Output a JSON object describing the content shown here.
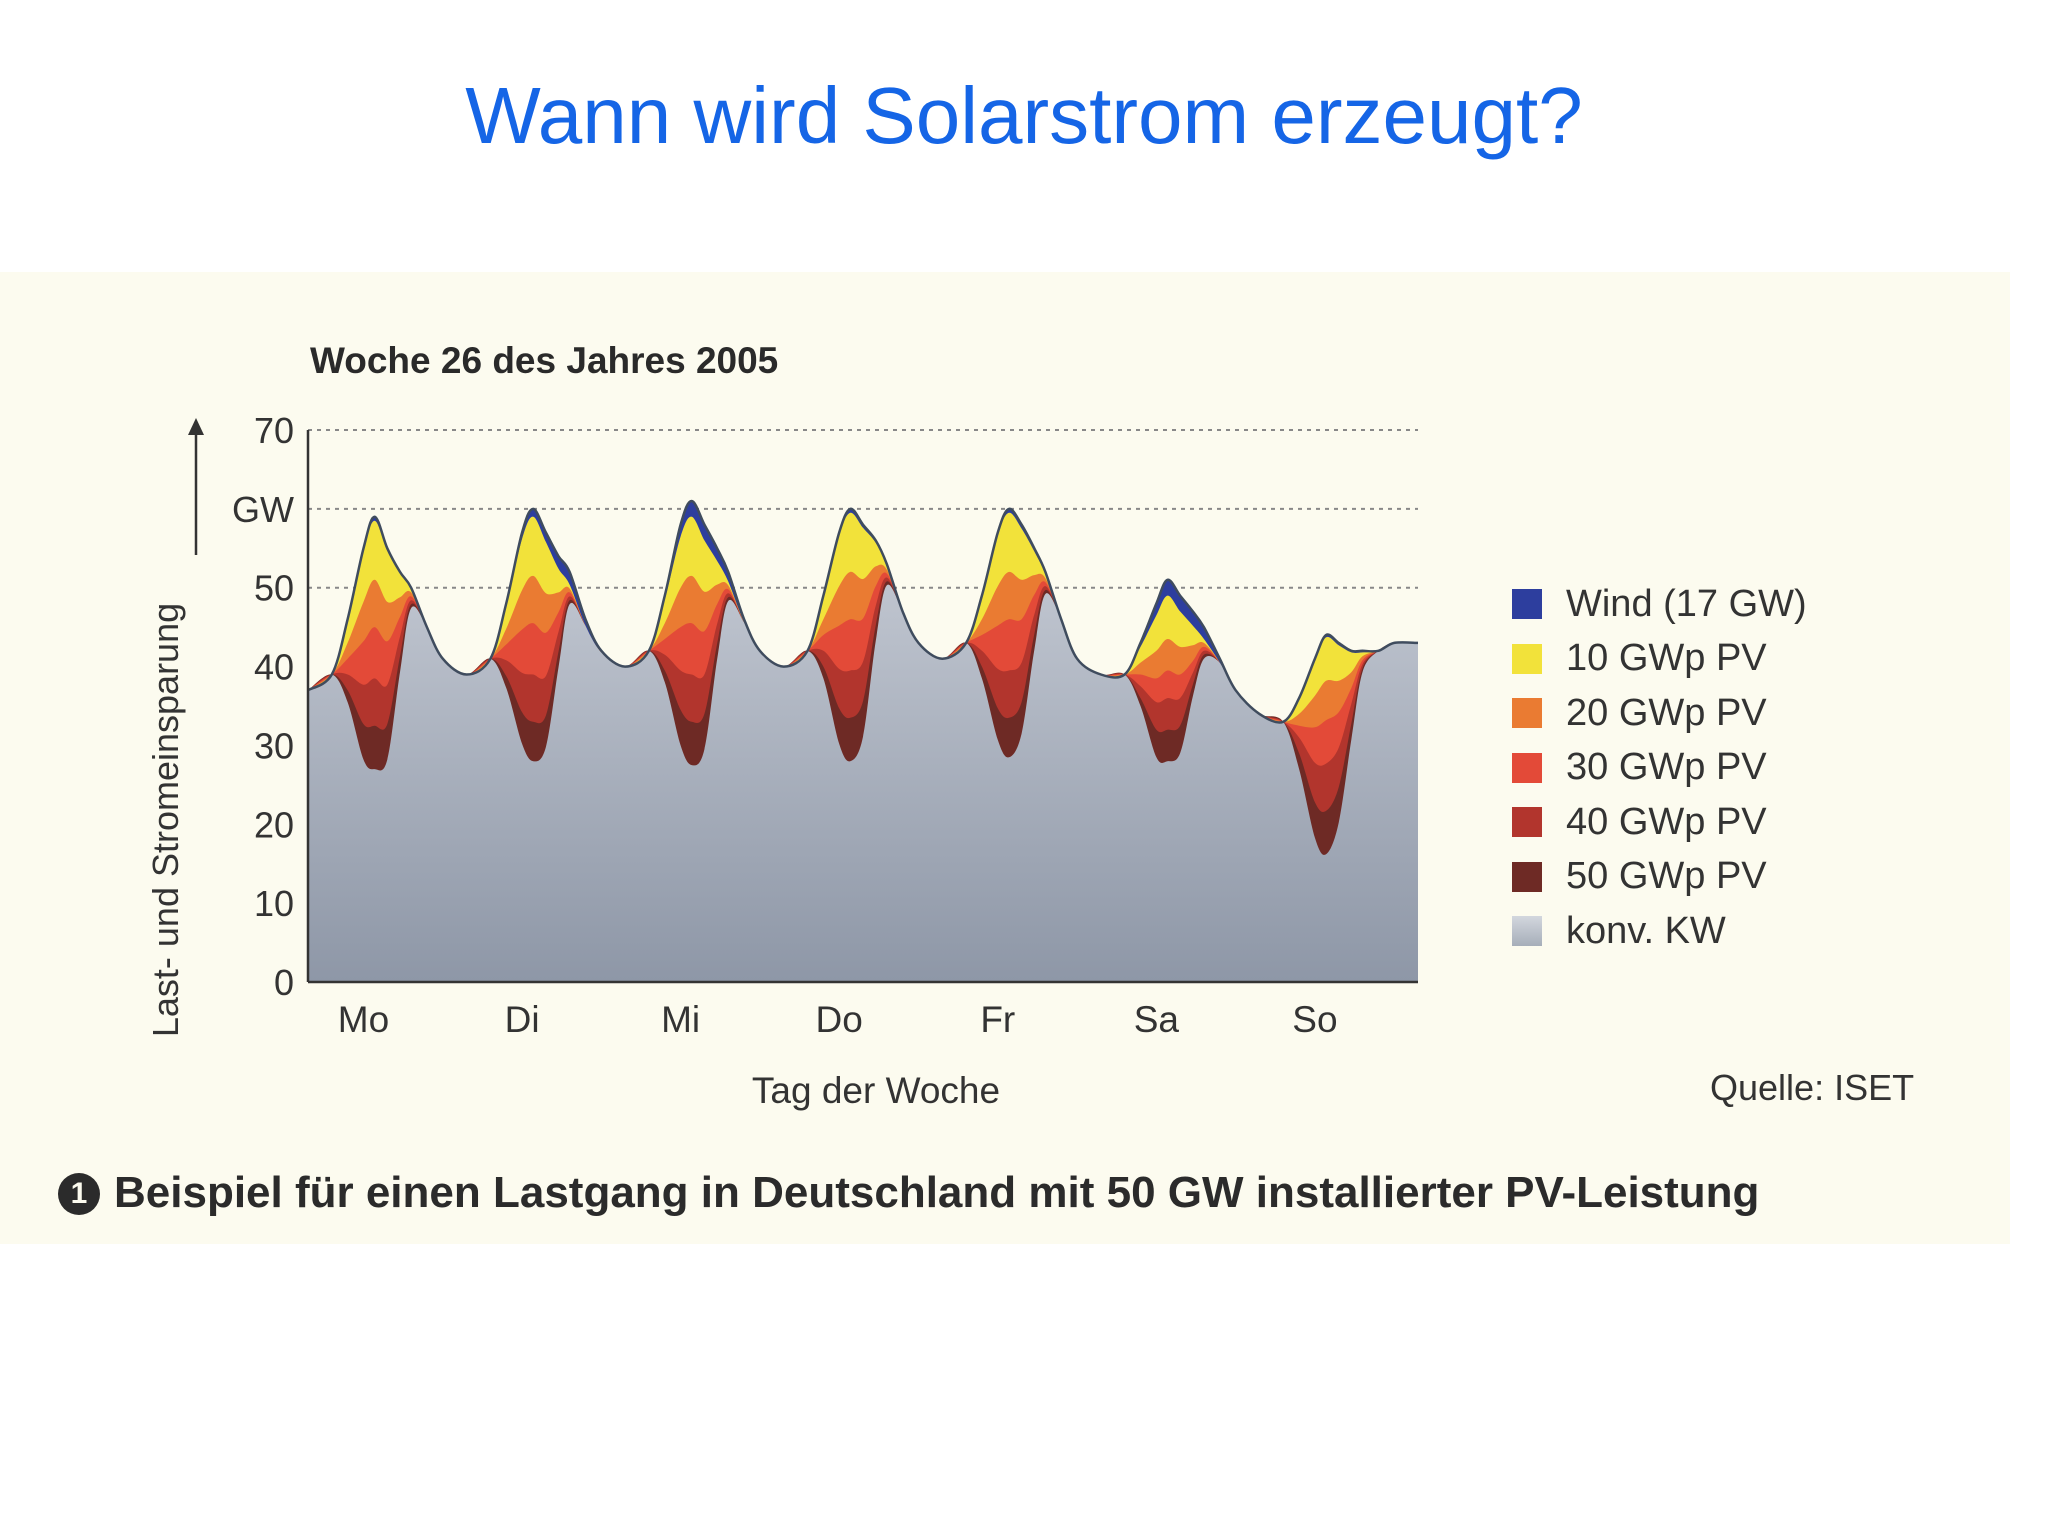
{
  "slide": {
    "title": "Wann wird Solarstrom erzeugt?"
  },
  "chart_data": {
    "type": "area",
    "title": "Woche 26 des Jahres 2005",
    "xlabel": "Tag der Woche",
    "ylabel": "Last- und Stromeinsparung",
    "yunit": "GW",
    "ylim": [
      0,
      70
    ],
    "yticks": [
      "0",
      "10",
      "20",
      "30",
      "40",
      "50",
      "GW",
      "70"
    ],
    "grid": "dashed horizontal at 50, 60, 70",
    "categories": [
      "Mo",
      "Di",
      "Mi",
      "Do",
      "Fr",
      "Sa",
      "So"
    ],
    "legend_position": "right",
    "x_days": [
      0,
      0.15,
      0.25,
      0.35,
      0.42,
      0.5,
      0.58,
      0.65,
      0.75,
      0.85,
      1.0
    ],
    "load": [
      [
        37,
        39,
        46,
        55,
        59,
        55,
        52,
        50,
        45,
        41,
        39
      ],
      [
        39,
        41,
        48,
        57,
        60,
        57,
        54,
        52,
        46,
        42,
        40
      ],
      [
        40,
        42,
        49,
        58,
        61,
        58,
        55,
        52,
        46,
        42,
        40
      ],
      [
        40,
        42,
        49,
        57,
        60,
        58,
        56,
        53,
        47,
        43,
        41
      ],
      [
        41,
        43,
        49,
        57,
        60,
        58,
        55,
        52,
        46,
        41,
        39
      ],
      [
        38,
        39,
        43,
        48,
        51,
        49,
        47,
        45,
        41,
        37,
        34
      ],
      [
        33,
        33,
        36,
        41,
        44,
        43,
        42,
        42,
        42,
        43,
        43
      ]
    ],
    "series": [
      {
        "name": "Wind (17 GW)",
        "color": "#2d3e9e",
        "reduction": [
          [
            0,
            0,
            0,
            0.3,
            0.5,
            0.3,
            0.2,
            0.1,
            0,
            0,
            0
          ],
          [
            0,
            0,
            0.2,
            0.8,
            1.0,
            1.2,
            1.6,
            1.6,
            0.8,
            0.2,
            0
          ],
          [
            0,
            0,
            0.5,
            1.5,
            2.0,
            2.0,
            1.6,
            1.2,
            0.4,
            0,
            0
          ],
          [
            0,
            0,
            0,
            0.3,
            0.5,
            0.4,
            0.3,
            0.2,
            0,
            0,
            0
          ],
          [
            0,
            0,
            0,
            0.3,
            0.5,
            0.5,
            0.4,
            0.3,
            0,
            0,
            0
          ],
          [
            0,
            0,
            0.5,
            1.5,
            2.0,
            2.0,
            1.8,
            1.5,
            0.5,
            0,
            0
          ],
          [
            0,
            0,
            0,
            0.2,
            0.3,
            0.3,
            0.2,
            0.2,
            0,
            0,
            0
          ]
        ]
      },
      {
        "name": "10 GWp PV",
        "color": "#f2e23a",
        "reduction": [
          [
            0,
            0,
            3.0,
            6.5,
            7.5,
            6.5,
            3.0,
            0.5,
            0,
            0,
            0
          ],
          [
            0,
            0,
            3.0,
            6.5,
            7.5,
            6.5,
            3.0,
            0.5,
            0,
            0,
            0
          ],
          [
            0,
            0,
            3.0,
            6.5,
            7.5,
            6.5,
            3.0,
            0.5,
            0,
            0,
            0
          ],
          [
            0,
            0,
            3.0,
            6.5,
            7.5,
            6.5,
            3.0,
            0.5,
            0,
            0,
            0
          ],
          [
            0,
            0,
            3.0,
            6.5,
            7.5,
            6.5,
            3.0,
            0.5,
            0,
            0,
            0
          ],
          [
            0,
            0,
            2.0,
            4.5,
            5.5,
            4.5,
            2.5,
            0.5,
            0,
            0,
            0
          ],
          [
            0,
            0,
            2.0,
            4.5,
            5.5,
            4.5,
            2.5,
            0.5,
            0,
            0,
            0
          ]
        ]
      },
      {
        "name": "20 GWp PV",
        "color": "#ea7b32",
        "reduction": [
          [
            0,
            0,
            2.0,
            5.0,
            6.0,
            5.0,
            2.5,
            0.5,
            0,
            0,
            0
          ],
          [
            0,
            0,
            2.0,
            5.0,
            6.0,
            5.0,
            2.5,
            0.5,
            0,
            0,
            0
          ],
          [
            0,
            0,
            2.0,
            5.0,
            6.0,
            5.0,
            2.5,
            0.5,
            0,
            0,
            0
          ],
          [
            0,
            0,
            2.0,
            5.0,
            6.0,
            5.0,
            2.5,
            0.5,
            0,
            0,
            0
          ],
          [
            0,
            0,
            2.0,
            5.0,
            6.0,
            5.0,
            2.5,
            0.5,
            0,
            0,
            0
          ],
          [
            0,
            0,
            1.5,
            3.5,
            4.0,
            3.5,
            2.0,
            0.5,
            0,
            0,
            0
          ],
          [
            0,
            0,
            1.5,
            4.0,
            5.0,
            4.0,
            2.0,
            0.5,
            0,
            0,
            0
          ]
        ]
      },
      {
        "name": "30 GWp PV",
        "color": "#e34a38",
        "reduction": [
          [
            0,
            0,
            2.0,
            5.5,
            6.5,
            5.5,
            2.5,
            0.5,
            0,
            0,
            0
          ],
          [
            0,
            0,
            2.0,
            5.5,
            6.5,
            5.5,
            2.5,
            0.5,
            0,
            0,
            0
          ],
          [
            0,
            0,
            2.0,
            5.5,
            6.5,
            5.5,
            2.5,
            0.5,
            0,
            0,
            0
          ],
          [
            0,
            0,
            2.0,
            5.5,
            6.5,
            5.5,
            2.5,
            0.5,
            0,
            0,
            0
          ],
          [
            0,
            0,
            2.0,
            5.5,
            6.5,
            5.5,
            2.5,
            0.5,
            0,
            0,
            0
          ],
          [
            0,
            0,
            1.5,
            3.0,
            3.5,
            3.0,
            1.5,
            0.5,
            0,
            0,
            0
          ],
          [
            0,
            0,
            1.5,
            4.5,
            5.5,
            4.5,
            2.0,
            0.5,
            0,
            0,
            0
          ]
        ]
      },
      {
        "name": "40 GWp PV",
        "color": "#b2352d",
        "reduction": [
          [
            0,
            0,
            2.0,
            5.0,
            6.0,
            5.0,
            2.5,
            0.5,
            0,
            0,
            0
          ],
          [
            0,
            0,
            2.0,
            5.0,
            6.0,
            5.0,
            2.5,
            0.5,
            0,
            0,
            0
          ],
          [
            0,
            0,
            2.0,
            5.0,
            6.0,
            5.0,
            2.5,
            0.5,
            0,
            0,
            0
          ],
          [
            0,
            0,
            2.0,
            5.0,
            6.0,
            5.0,
            2.5,
            0.5,
            0,
            0,
            0
          ],
          [
            0,
            0,
            2.0,
            5.0,
            6.0,
            5.0,
            2.5,
            0.5,
            0,
            0,
            0
          ],
          [
            0,
            0,
            1.5,
            3.5,
            4.0,
            3.5,
            1.5,
            0.5,
            0,
            0,
            0
          ],
          [
            0,
            0,
            2.0,
            5.0,
            6.0,
            5.0,
            2.5,
            0.5,
            0,
            0,
            0
          ]
        ]
      },
      {
        "name": "50 GWp PV",
        "color": "#6e2a25",
        "reduction": [
          [
            0,
            0,
            1.5,
            4.5,
            5.5,
            4.5,
            2.0,
            0.5,
            0,
            0,
            0
          ],
          [
            0,
            0,
            1.5,
            4.0,
            5.0,
            4.0,
            2.0,
            0.5,
            0,
            0,
            0
          ],
          [
            0,
            0,
            1.5,
            4.5,
            5.5,
            4.5,
            2.0,
            0.5,
            0,
            0,
            0
          ],
          [
            0,
            0,
            1.5,
            4.5,
            5.5,
            4.5,
            2.0,
            0.5,
            0,
            0,
            0
          ],
          [
            0,
            0,
            1.5,
            4.0,
            5.0,
            4.0,
            2.0,
            0.5,
            0,
            0,
            0
          ],
          [
            0,
            0,
            1.0,
            3.5,
            4.0,
            3.5,
            1.5,
            0.5,
            0,
            0,
            0
          ],
          [
            0,
            0,
            2.0,
            4.5,
            5.5,
            4.5,
            2.0,
            0.5,
            0,
            0,
            0
          ]
        ]
      },
      {
        "name": "konv. KW",
        "color": "#a6aeb9",
        "reduction": null
      }
    ],
    "source": "Quelle: ISET"
  },
  "caption": {
    "marker": "1",
    "text": "Beispiel für einen Lastgang in Deutschland mit 50 GW installierter PV-Leistung"
  }
}
